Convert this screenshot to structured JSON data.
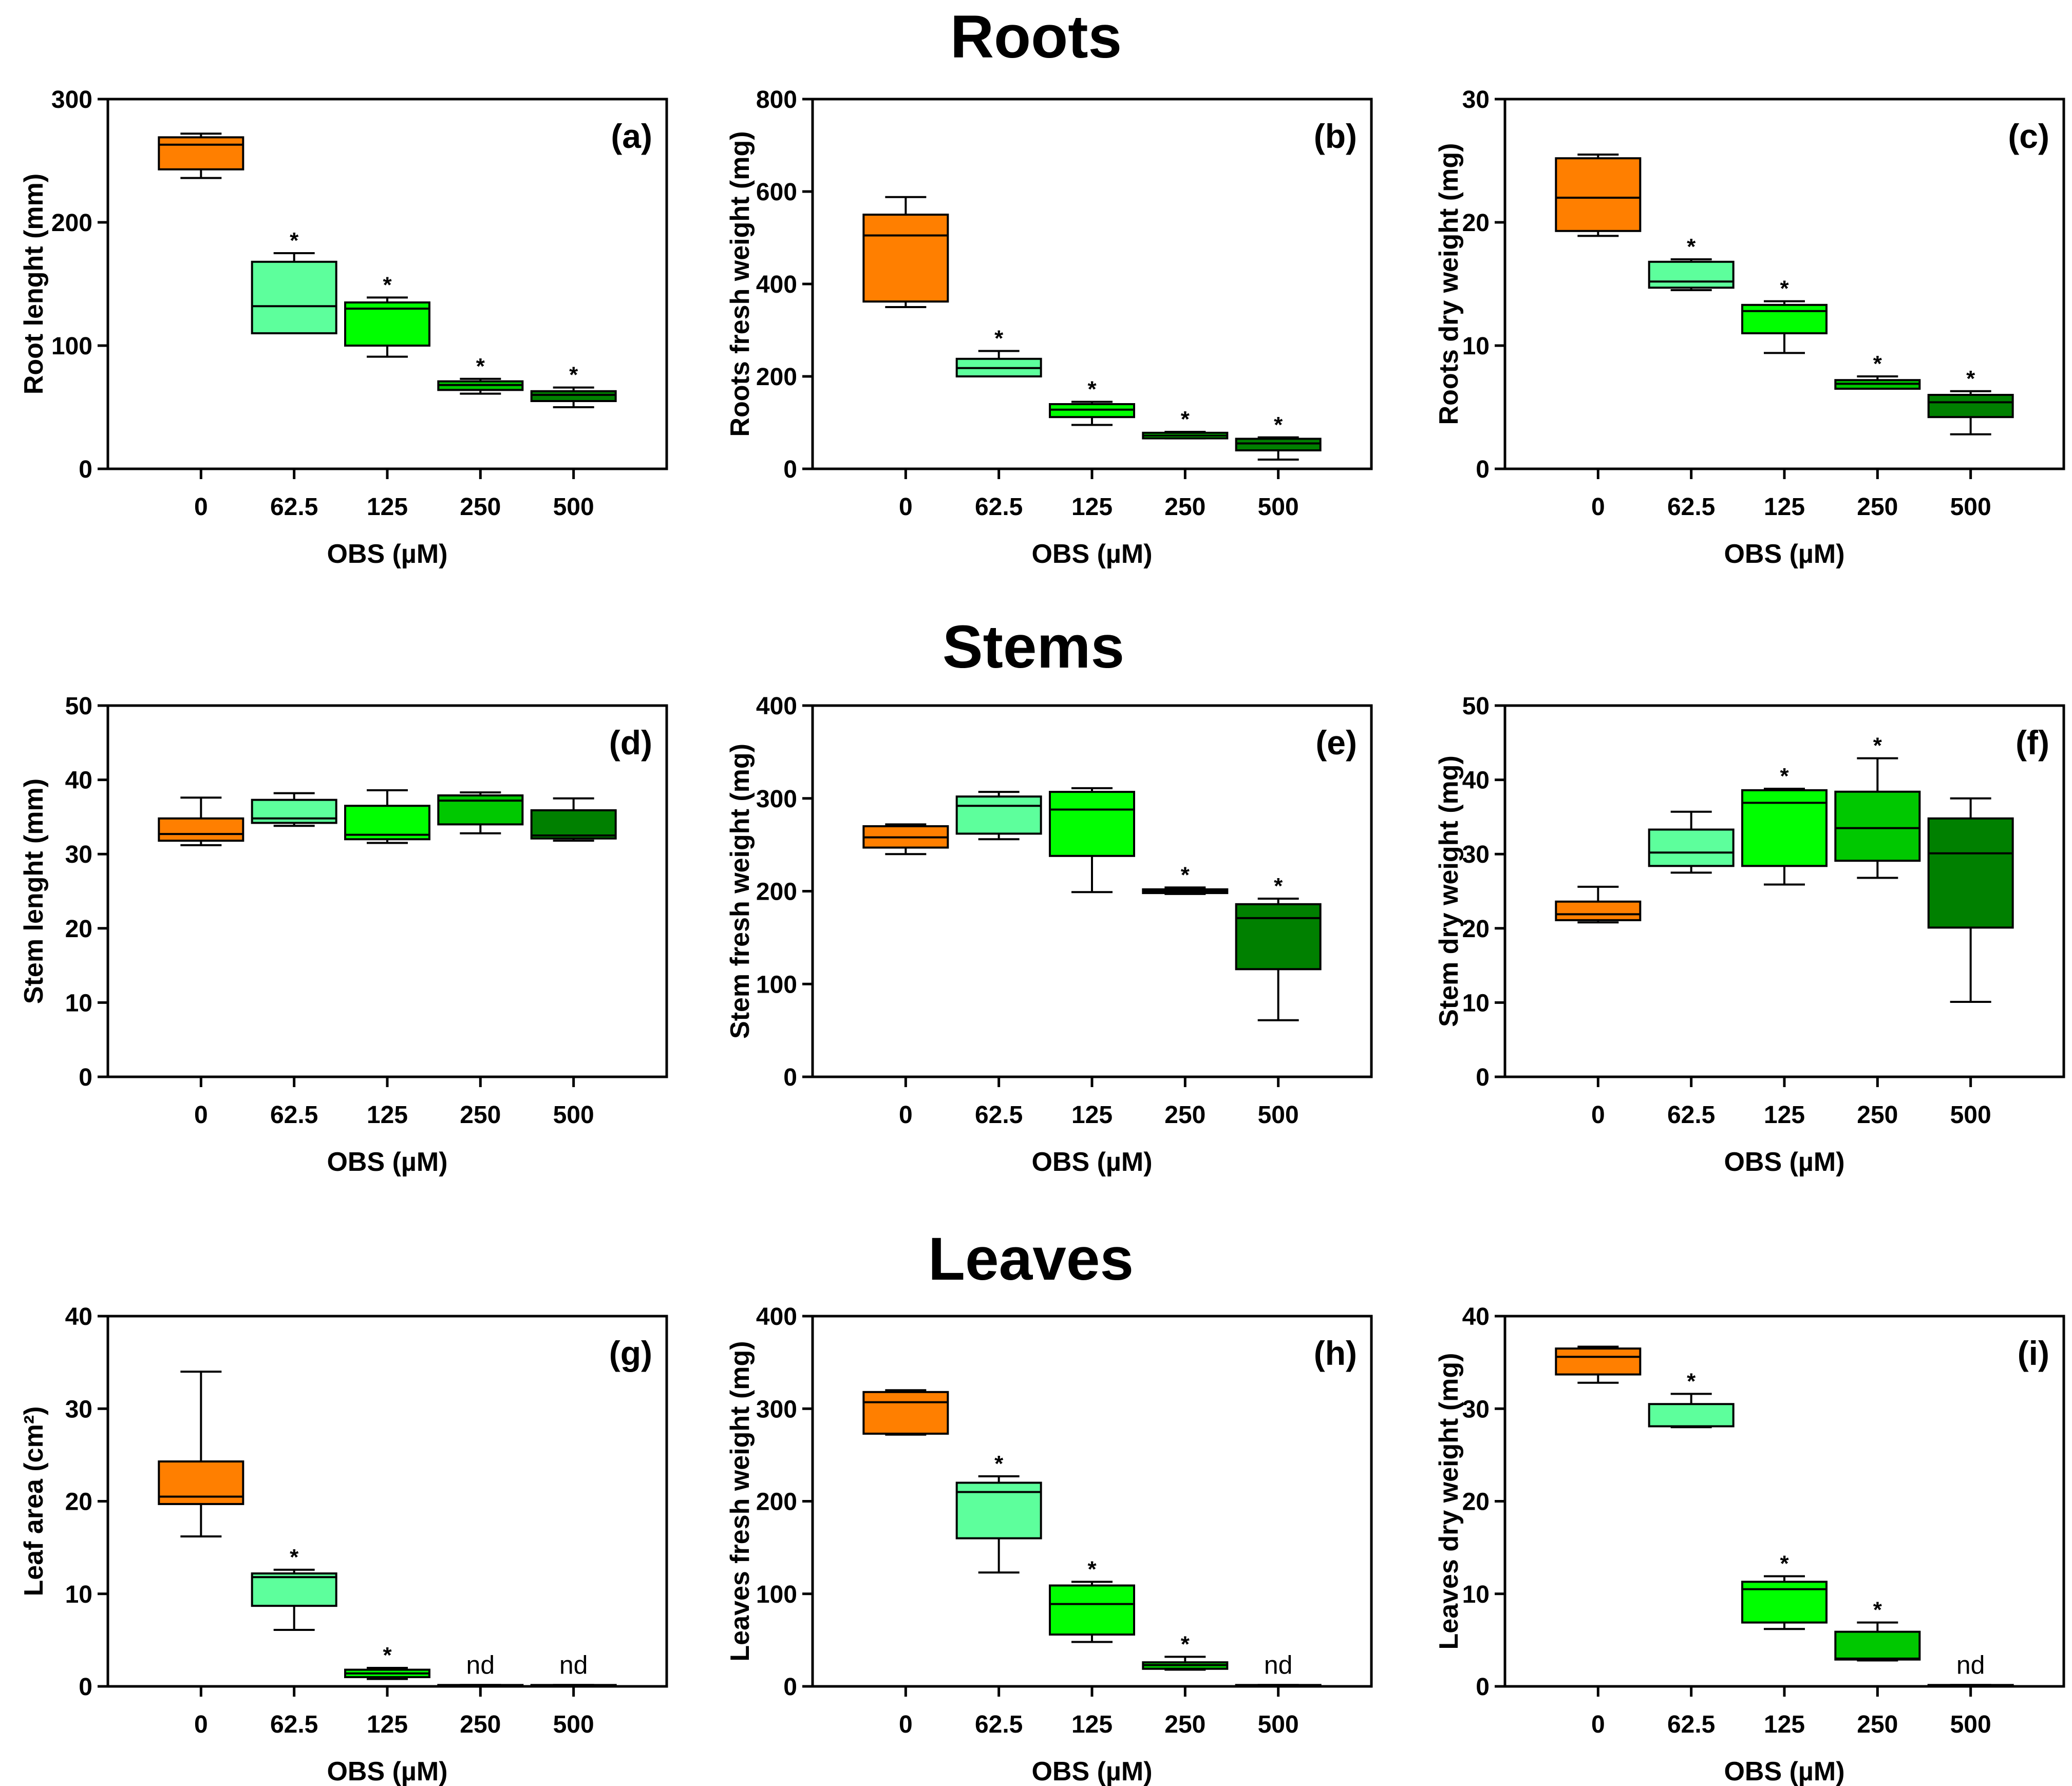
{
  "sections": [
    {
      "title": "Roots"
    },
    {
      "title": "Stems"
    },
    {
      "title": "Leaves"
    }
  ],
  "colors": {
    "0": "#ff7f00",
    "62.5": "#5dff9c",
    "125": "#00ff00",
    "250": "#00c800",
    "500": "#008000"
  },
  "chart_data": [
    {
      "type": "box",
      "panel": "(a)",
      "section": "Roots",
      "ylabel": "Root lenght (mm)",
      "xlabel": "OBS (µM)",
      "categories": [
        "0",
        "62.5",
        "125",
        "250",
        "500"
      ],
      "ylim": [
        0,
        300
      ],
      "yticks": [
        0,
        100,
        200,
        300
      ],
      "boxes": [
        {
          "min": 236,
          "q1": 243,
          "median": 263,
          "q3": 269,
          "max": 272,
          "annotation": ""
        },
        {
          "min": 110,
          "q1": 110,
          "median": 132,
          "q3": 168,
          "max": 175,
          "annotation": "*"
        },
        {
          "min": 91,
          "q1": 100,
          "median": 130,
          "q3": 135,
          "max": 139,
          "annotation": "*"
        },
        {
          "min": 61,
          "q1": 64,
          "median": 68,
          "q3": 71,
          "max": 73,
          "annotation": "*"
        },
        {
          "min": 50,
          "q1": 55,
          "median": 60,
          "q3": 63,
          "max": 66,
          "annotation": "*"
        }
      ]
    },
    {
      "type": "box",
      "panel": "(b)",
      "section": "Roots",
      "ylabel": "Roots fresh weight (mg)",
      "xlabel": "OBS (µM)",
      "categories": [
        "0",
        "62.5",
        "125",
        "250",
        "500"
      ],
      "ylim": [
        0,
        800
      ],
      "yticks": [
        0,
        200,
        400,
        600,
        800
      ],
      "boxes": [
        {
          "min": 350,
          "q1": 362,
          "median": 505,
          "q3": 550,
          "max": 588,
          "annotation": ""
        },
        {
          "min": 200,
          "q1": 200,
          "median": 218,
          "q3": 238,
          "max": 255,
          "annotation": "*"
        },
        {
          "min": 95,
          "q1": 112,
          "median": 128,
          "q3": 140,
          "max": 145,
          "annotation": "*"
        },
        {
          "min": 66,
          "q1": 66,
          "median": 72,
          "q3": 78,
          "max": 80,
          "annotation": "*"
        },
        {
          "min": 20,
          "q1": 40,
          "median": 55,
          "q3": 65,
          "max": 68,
          "annotation": "*"
        }
      ]
    },
    {
      "type": "box",
      "panel": "(c)",
      "section": "Roots",
      "ylabel": "Roots dry weight (mg)",
      "xlabel": "OBS (µM)",
      "categories": [
        "0",
        "62.5",
        "125",
        "250",
        "500"
      ],
      "ylim": [
        0,
        30
      ],
      "yticks": [
        0,
        10,
        20,
        30
      ],
      "boxes": [
        {
          "min": 18.9,
          "q1": 19.3,
          "median": 22.0,
          "q3": 25.2,
          "max": 25.5,
          "annotation": ""
        },
        {
          "min": 14.5,
          "q1": 14.7,
          "median": 15.2,
          "q3": 16.8,
          "max": 17.0,
          "annotation": "*"
        },
        {
          "min": 9.4,
          "q1": 11.0,
          "median": 12.8,
          "q3": 13.3,
          "max": 13.6,
          "annotation": "*"
        },
        {
          "min": 6.5,
          "q1": 6.5,
          "median": 6.9,
          "q3": 7.2,
          "max": 7.5,
          "annotation": "*"
        },
        {
          "min": 2.8,
          "q1": 4.2,
          "median": 5.4,
          "q3": 6.0,
          "max": 6.3,
          "annotation": "*"
        }
      ]
    },
    {
      "type": "box",
      "panel": "(d)",
      "section": "Stems",
      "ylabel": "Stem lenght (mm)",
      "xlabel": "OBS (µM)",
      "categories": [
        "0",
        "62.5",
        "125",
        "250",
        "500"
      ],
      "ylim": [
        0,
        50
      ],
      "yticks": [
        0,
        10,
        20,
        30,
        40,
        50
      ],
      "boxes": [
        {
          "min": 31.2,
          "q1": 31.8,
          "median": 32.7,
          "q3": 34.8,
          "max": 37.6,
          "annotation": ""
        },
        {
          "min": 33.8,
          "q1": 34.2,
          "median": 34.8,
          "q3": 37.3,
          "max": 38.2,
          "annotation": ""
        },
        {
          "min": 31.5,
          "q1": 32.0,
          "median": 32.6,
          "q3": 36.5,
          "max": 38.6,
          "annotation": ""
        },
        {
          "min": 32.8,
          "q1": 34.0,
          "median": 37.2,
          "q3": 37.9,
          "max": 38.3,
          "annotation": ""
        },
        {
          "min": 31.8,
          "q1": 32.1,
          "median": 32.5,
          "q3": 35.9,
          "max": 37.5,
          "annotation": ""
        }
      ]
    },
    {
      "type": "box",
      "panel": "(e)",
      "section": "Stems",
      "ylabel": "Stem fresh weight (mg)",
      "xlabel": "OBS (µM)",
      "categories": [
        "0",
        "62.5",
        "125",
        "250",
        "500"
      ],
      "ylim": [
        0,
        400
      ],
      "yticks": [
        0,
        100,
        200,
        300,
        400
      ],
      "boxes": [
        {
          "min": 240,
          "q1": 247,
          "median": 258,
          "q3": 270,
          "max": 272,
          "annotation": ""
        },
        {
          "min": 256,
          "q1": 262,
          "median": 292,
          "q3": 302,
          "max": 307,
          "annotation": ""
        },
        {
          "min": 199,
          "q1": 238,
          "median": 288,
          "q3": 307,
          "max": 311,
          "annotation": ""
        },
        {
          "min": 197,
          "q1": 198,
          "median": 200,
          "q3": 202,
          "max": 204,
          "annotation": "*"
        },
        {
          "min": 61,
          "q1": 116,
          "median": 171,
          "q3": 186,
          "max": 192,
          "annotation": "*"
        }
      ]
    },
    {
      "type": "box",
      "panel": "(f)",
      "section": "Stems",
      "ylabel": "Stem dry weight (mg)",
      "xlabel": "OBS (µM)",
      "categories": [
        "0",
        "62.5",
        "125",
        "250",
        "500"
      ],
      "ylim": [
        0,
        50
      ],
      "yticks": [
        0,
        10,
        20,
        30,
        40,
        50
      ],
      "boxes": [
        {
          "min": 20.8,
          "q1": 21.1,
          "median": 21.9,
          "q3": 23.6,
          "max": 25.6,
          "annotation": ""
        },
        {
          "min": 27.5,
          "q1": 28.4,
          "median": 30.2,
          "q3": 33.3,
          "max": 35.7,
          "annotation": ""
        },
        {
          "min": 25.9,
          "q1": 28.4,
          "median": 36.9,
          "q3": 38.6,
          "max": 38.8,
          "annotation": "*"
        },
        {
          "min": 26.8,
          "q1": 29.1,
          "median": 33.5,
          "q3": 38.4,
          "max": 42.9,
          "annotation": "*"
        },
        {
          "min": 10.1,
          "q1": 20.1,
          "median": 30.1,
          "q3": 34.8,
          "max": 37.5,
          "annotation": ""
        }
      ]
    },
    {
      "type": "box",
      "panel": "(g)",
      "section": "Leaves",
      "ylabel": "Leaf area (cm²)",
      "xlabel": "OBS (µM)",
      "categories": [
        "0",
        "62.5",
        "125",
        "250",
        "500"
      ],
      "ylim": [
        0,
        40
      ],
      "yticks": [
        0,
        10,
        20,
        30,
        40
      ],
      "boxes": [
        {
          "min": 16.2,
          "q1": 19.7,
          "median": 20.5,
          "q3": 24.3,
          "max": 34.0,
          "annotation": ""
        },
        {
          "min": 6.1,
          "q1": 8.7,
          "median": 11.8,
          "q3": 12.2,
          "max": 12.6,
          "annotation": "*"
        },
        {
          "min": 0.8,
          "q1": 1.0,
          "median": 1.4,
          "q3": 1.8,
          "max": 2.0,
          "annotation": "*"
        },
        {
          "min": 0,
          "q1": 0,
          "median": 0,
          "q3": 0.15,
          "max": 0.15,
          "annotation": "nd"
        },
        {
          "min": 0,
          "q1": 0,
          "median": 0,
          "q3": 0.15,
          "max": 0.15,
          "annotation": "nd"
        }
      ]
    },
    {
      "type": "box",
      "panel": "(h)",
      "section": "Leaves",
      "ylabel": "Leaves fresh weight (mg)",
      "xlabel": "OBS (µM)",
      "categories": [
        "0",
        "62.5",
        "125",
        "250",
        "500"
      ],
      "ylim": [
        0,
        400
      ],
      "yticks": [
        0,
        100,
        200,
        300,
        400
      ],
      "boxes": [
        {
          "min": 272,
          "q1": 273,
          "median": 307,
          "q3": 318,
          "max": 320,
          "annotation": ""
        },
        {
          "min": 123,
          "q1": 160,
          "median": 210,
          "q3": 220,
          "max": 227,
          "annotation": "*"
        },
        {
          "min": 48,
          "q1": 56,
          "median": 89,
          "q3": 109,
          "max": 113,
          "annotation": "*"
        },
        {
          "min": 18,
          "q1": 19,
          "median": 23,
          "q3": 26,
          "max": 32,
          "annotation": "*"
        },
        {
          "min": 0,
          "q1": 0,
          "median": 0,
          "q3": 1.5,
          "max": 1.5,
          "annotation": "nd"
        }
      ]
    },
    {
      "type": "box",
      "panel": "(i)",
      "section": "Leaves",
      "ylabel": "Leaves dry weight (mg)",
      "xlabel": "OBS (µM)",
      "categories": [
        "0",
        "62.5",
        "125",
        "250",
        "500"
      ],
      "ylim": [
        0,
        40
      ],
      "yticks": [
        0,
        10,
        20,
        30,
        40
      ],
      "boxes": [
        {
          "min": 32.8,
          "q1": 33.7,
          "median": 35.6,
          "q3": 36.5,
          "max": 36.7,
          "annotation": ""
        },
        {
          "min": 28.0,
          "q1": 28.1,
          "median": 28.1,
          "q3": 30.5,
          "max": 31.6,
          "annotation": "*"
        },
        {
          "min": 6.2,
          "q1": 6.9,
          "median": 10.5,
          "q3": 11.3,
          "max": 11.9,
          "annotation": "*"
        },
        {
          "min": 2.8,
          "q1": 2.9,
          "median": 3.0,
          "q3": 5.9,
          "max": 6.9,
          "annotation": "*"
        },
        {
          "min": 0,
          "q1": 0,
          "median": 0,
          "q3": 0.15,
          "max": 0.15,
          "annotation": "nd"
        }
      ]
    }
  ]
}
